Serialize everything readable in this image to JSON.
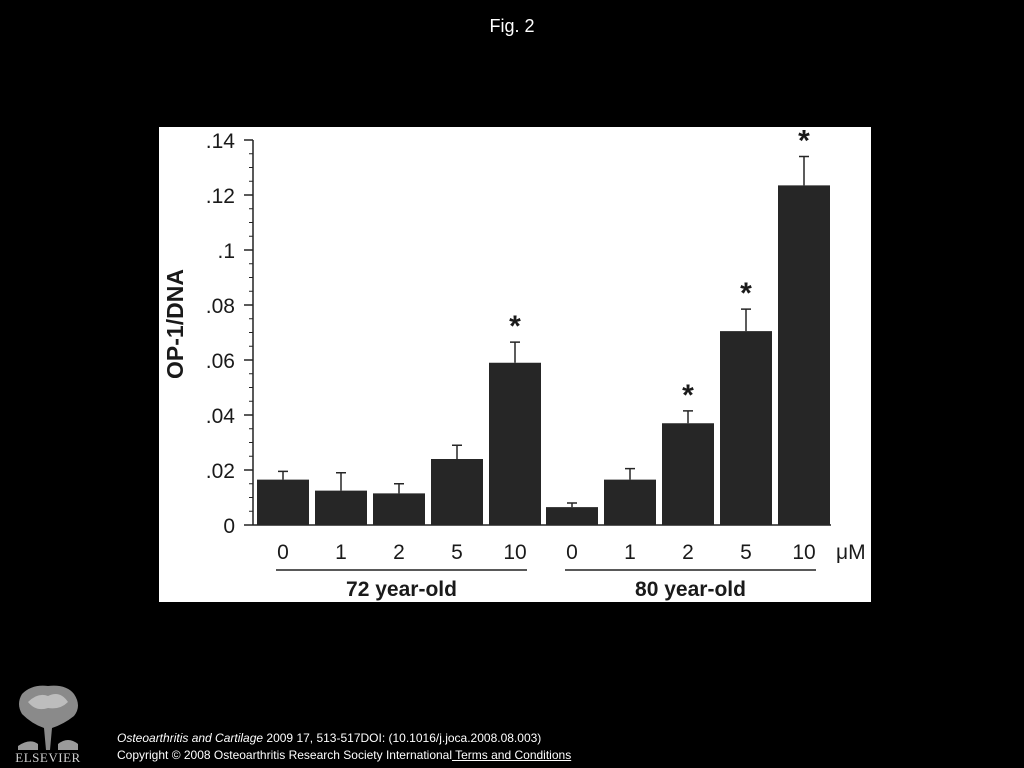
{
  "figure": {
    "title": "Fig. 2"
  },
  "chart_data": {
    "type": "bar",
    "ylabel": "OP-1/DNA",
    "ylim": [
      0,
      0.14
    ],
    "yticks": [
      0,
      0.02,
      0.04,
      0.06,
      0.08,
      0.1,
      0.12,
      0.14
    ],
    "ytick_labels": [
      "0",
      ".02",
      ".04",
      ".06",
      ".08",
      ".1",
      ".12",
      ".14"
    ],
    "unit_label": "μM",
    "groups": [
      {
        "name": "72 year-old",
        "categories": [
          "0",
          "1",
          "2",
          "5",
          "10"
        ],
        "values": [
          0.0165,
          0.0125,
          0.0115,
          0.024,
          0.059
        ],
        "errors": [
          0.003,
          0.0065,
          0.0035,
          0.005,
          0.0075
        ],
        "significant": [
          false,
          false,
          false,
          false,
          true
        ]
      },
      {
        "name": "80 year-old",
        "categories": [
          "0",
          "1",
          "2",
          "5",
          "10"
        ],
        "values": [
          0.0065,
          0.0165,
          0.037,
          0.0705,
          0.1235
        ],
        "errors": [
          0.0015,
          0.004,
          0.0045,
          0.008,
          0.0105
        ],
        "significant": [
          false,
          false,
          true,
          true,
          true
        ]
      }
    ],
    "significance_marker": "*",
    "bar_color": "#262626"
  },
  "footer": {
    "journal": "Osteoarthritis and Cartilage",
    "citation": " 2009 17, 513-517DOI: (10.1016/j.joca.2008.08.003)",
    "copyright": "Copyright © 2008 Osteoarthritis Research Society International",
    "terms_link": " Terms and Conditions"
  },
  "logo": {
    "text": "ELSEVIER"
  }
}
